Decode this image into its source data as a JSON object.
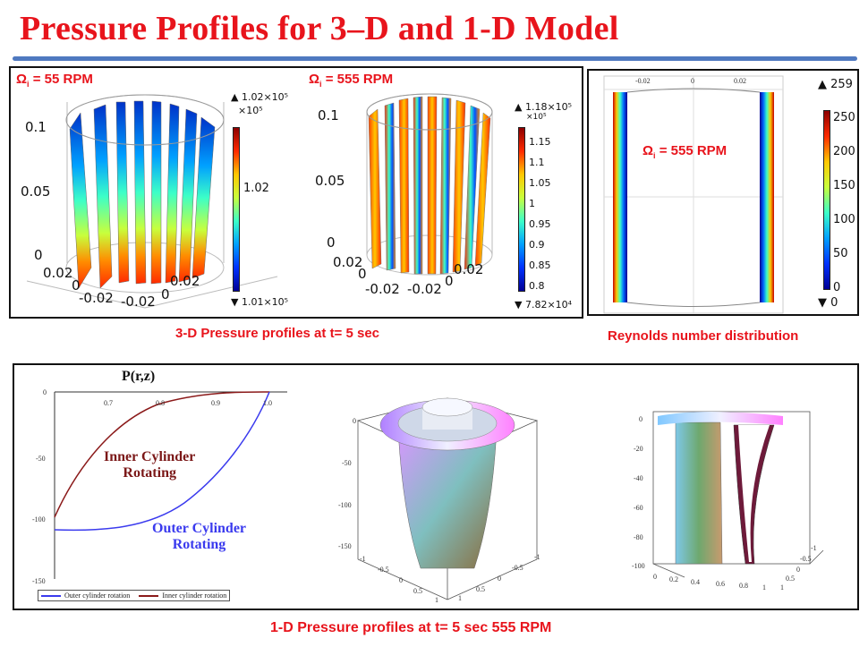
{
  "title": "Pressure Profiles for 3–D and 1-D Model",
  "panel_3d": {
    "caption": "3-D Pressure profiles at t= 5 sec",
    "plot_55": {
      "omega_symbol": "Ω",
      "omega_sub": "i",
      "omega_value": "= 55 RPM",
      "z_ticks": [
        "0.1",
        "0.05",
        "0"
      ],
      "xy_ticks": [
        "0.02",
        "0",
        "-0.02",
        "-0.02",
        "0",
        "0.02"
      ],
      "cb_max": "▲ 1.02×10⁵",
      "cb_scale": "×10⁵",
      "cb_ticks": [
        "1.02"
      ],
      "cb_min": "▼ 1.01×10⁵"
    },
    "plot_555": {
      "omega_symbol": "Ω",
      "omega_sub": "i",
      "omega_value": "= 555 RPM",
      "z_ticks": [
        "0.1",
        "0.05",
        "0"
      ],
      "xy_ticks": [
        "0.02",
        "0",
        "-0.02",
        "-0.02",
        "0",
        "0.02"
      ],
      "cb_max": "▲ 1.18×10⁵",
      "cb_scale": "×10⁵",
      "cb_ticks": [
        "1.15",
        "1.1",
        "1.05",
        "1",
        "0.95",
        "0.9",
        "0.85",
        "0.8"
      ],
      "cb_min": "▼ 7.82×10⁴"
    }
  },
  "panel_reynolds": {
    "caption": "Reynolds number distribution",
    "omega_symbol": "Ω",
    "omega_sub": "i",
    "omega_value": "= 555 RPM",
    "top_ticks": [
      "-0.02",
      "0",
      "0.02"
    ],
    "cb_max": "▲ 259",
    "cb_ticks": [
      "250",
      "200",
      "150",
      "100",
      "50",
      "0"
    ],
    "cb_min": "▼ 0"
  },
  "panel_1d": {
    "caption": "1-D Pressure profiles at t= 5 sec 555 RPM",
    "line_plot": {
      "title": "P(r,z)",
      "inner_label_line1": "Inner Cylinder",
      "inner_label_line2": "Rotating",
      "outer_label_line1": "Outer Cylinder",
      "outer_label_line2": "Rotating",
      "x_ticks": [
        "0.7",
        "0.8",
        "0.9",
        "1.0"
      ],
      "y_ticks": [
        "0",
        "-50",
        "-100",
        "-150"
      ],
      "legend_outer": "Outer cylinder rotation",
      "legend_inner": "Inner cylinder rotation",
      "outer_color": "#3a3aee",
      "inner_color": "#8b1a1a"
    },
    "surface_1": {
      "z_ticks": [
        "0",
        "-50",
        "-100",
        "-150"
      ],
      "x_ticks": [
        "-1",
        "-0.5",
        "0",
        "0.5",
        "1"
      ],
      "y_ticks": [
        "-1",
        "-0.5",
        "0",
        "0.5",
        "1"
      ]
    },
    "surface_2": {
      "z_ticks": [
        "0",
        "-20",
        "-40",
        "-60",
        "-80",
        "-100"
      ],
      "x_ticks": [
        "0",
        "0.2",
        "0.4",
        "0.6",
        "0.8",
        "1"
      ],
      "y_ticks": [
        "-1",
        "-0.5",
        "0",
        "0.5",
        "1"
      ]
    }
  }
}
